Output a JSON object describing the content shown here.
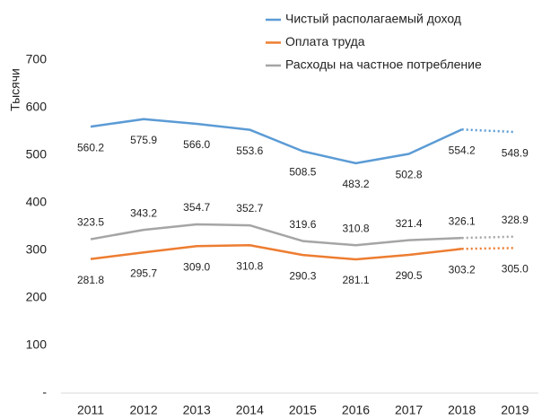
{
  "chart_data": {
    "type": "line",
    "y_label": "Тысячи",
    "categories": [
      "2011",
      "2012",
      "2013",
      "2014",
      "2015",
      "2016",
      "2017",
      "2018",
      "2019"
    ],
    "series": [
      {
        "name": "Чистый располагаемый доход",
        "color": "#5b9bd5",
        "label_position": "below",
        "values": [
          560.2,
          575.9,
          566.0,
          553.6,
          508.5,
          483.2,
          502.8,
          554.2,
          548.9
        ],
        "value_labels": [
          "560.2",
          "575.9",
          "566.0",
          "553.6",
          "508.5",
          "483.2",
          "502.8",
          "554.2",
          "548.9"
        ]
      },
      {
        "name": "Оплата труда",
        "color": "#ed7d31",
        "label_position": "below",
        "values": [
          281.8,
          295.7,
          309.0,
          310.8,
          290.3,
          281.1,
          290.5,
          303.2,
          305.0
        ],
        "value_labels": [
          "281.8",
          "295.7",
          "309.0",
          "310.8",
          "290.3",
          "281.1",
          "290.5",
          "303.2",
          "305.0"
        ]
      },
      {
        "name": "Расходы на частное потребление",
        "color": "#a5a5a5",
        "label_position": "above",
        "values": [
          323.5,
          343.2,
          354.7,
          352.7,
          319.6,
          310.8,
          321.4,
          326.1,
          328.9
        ],
        "value_labels": [
          "323.5",
          "343.2",
          "354.7",
          "352.7",
          "319.6",
          "310.8",
          "321.4",
          "326.1",
          "328.9"
        ]
      }
    ],
    "dotted_last_segment": true,
    "ylim": [
      0,
      700
    ],
    "yticks": [
      {
        "value": 0,
        "label": "-"
      },
      100,
      200,
      300,
      400,
      500,
      600,
      700
    ],
    "grid": false
  }
}
